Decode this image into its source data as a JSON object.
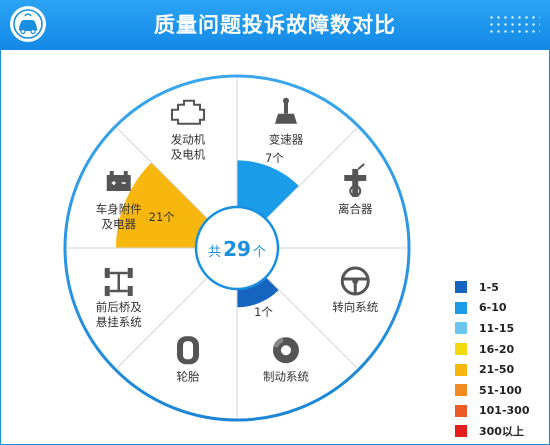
{
  "header": {
    "title": "质量问题投诉故障数对比"
  },
  "center": {
    "prefix": "共",
    "number": "29",
    "suffix": "个"
  },
  "chart_data": {
    "type": "pie",
    "title": "质量问题投诉故障数对比",
    "total": 29,
    "categories": [
      {
        "name": "变速器",
        "lines": [
          "变速器"
        ],
        "value": 7,
        "value_label": "7个",
        "color": "#1a9ce8",
        "icon": "gear-shift-icon"
      },
      {
        "name": "离合器",
        "lines": [
          "离合器"
        ],
        "value": 0,
        "value_label": "",
        "color": "",
        "icon": "clutch-icon"
      },
      {
        "name": "转向系统",
        "lines": [
          "转向系统"
        ],
        "value": 0,
        "value_label": "",
        "color": "",
        "icon": "steering-wheel-icon"
      },
      {
        "name": "制动系统",
        "lines": [
          "制动系统"
        ],
        "value": 1,
        "value_label": "1个",
        "color": "#1565c0",
        "icon": "brake-disc-icon"
      },
      {
        "name": "轮胎",
        "lines": [
          "轮胎"
        ],
        "value": 0,
        "value_label": "",
        "color": "",
        "icon": "tire-icon"
      },
      {
        "name": "前后桥及悬挂系统",
        "lines": [
          "前后桥及",
          "悬挂系统"
        ],
        "value": 0,
        "value_label": "",
        "color": "",
        "icon": "axle-icon"
      },
      {
        "name": "车身附件及电器",
        "lines": [
          "车身附件",
          "及电器"
        ],
        "value": 21,
        "value_label": "21个",
        "color": "#f7b70e",
        "icon": "battery-icon"
      },
      {
        "name": "发动机及电机",
        "lines": [
          "发动机",
          "及电机"
        ],
        "value": 0,
        "value_label": "",
        "color": "",
        "icon": "engine-icon"
      }
    ],
    "value_max": 21,
    "legend_position": "bottom-right",
    "legend": [
      {
        "label": "1-5",
        "color": "#1565c0"
      },
      {
        "label": "6-10",
        "color": "#1a9ce8"
      },
      {
        "label": "11-15",
        "color": "#6cc6f2"
      },
      {
        "label": "16-20",
        "color": "#f2d90d"
      },
      {
        "label": "21-50",
        "color": "#f7b70e"
      },
      {
        "label": "51-100",
        "color": "#f28a22"
      },
      {
        "label": "101-300",
        "color": "#ec5a28"
      },
      {
        "label": "300以上",
        "color": "#e41d1d"
      }
    ]
  },
  "colors": {
    "accent": "#1a8fe0",
    "ring": "#2a96dd"
  }
}
